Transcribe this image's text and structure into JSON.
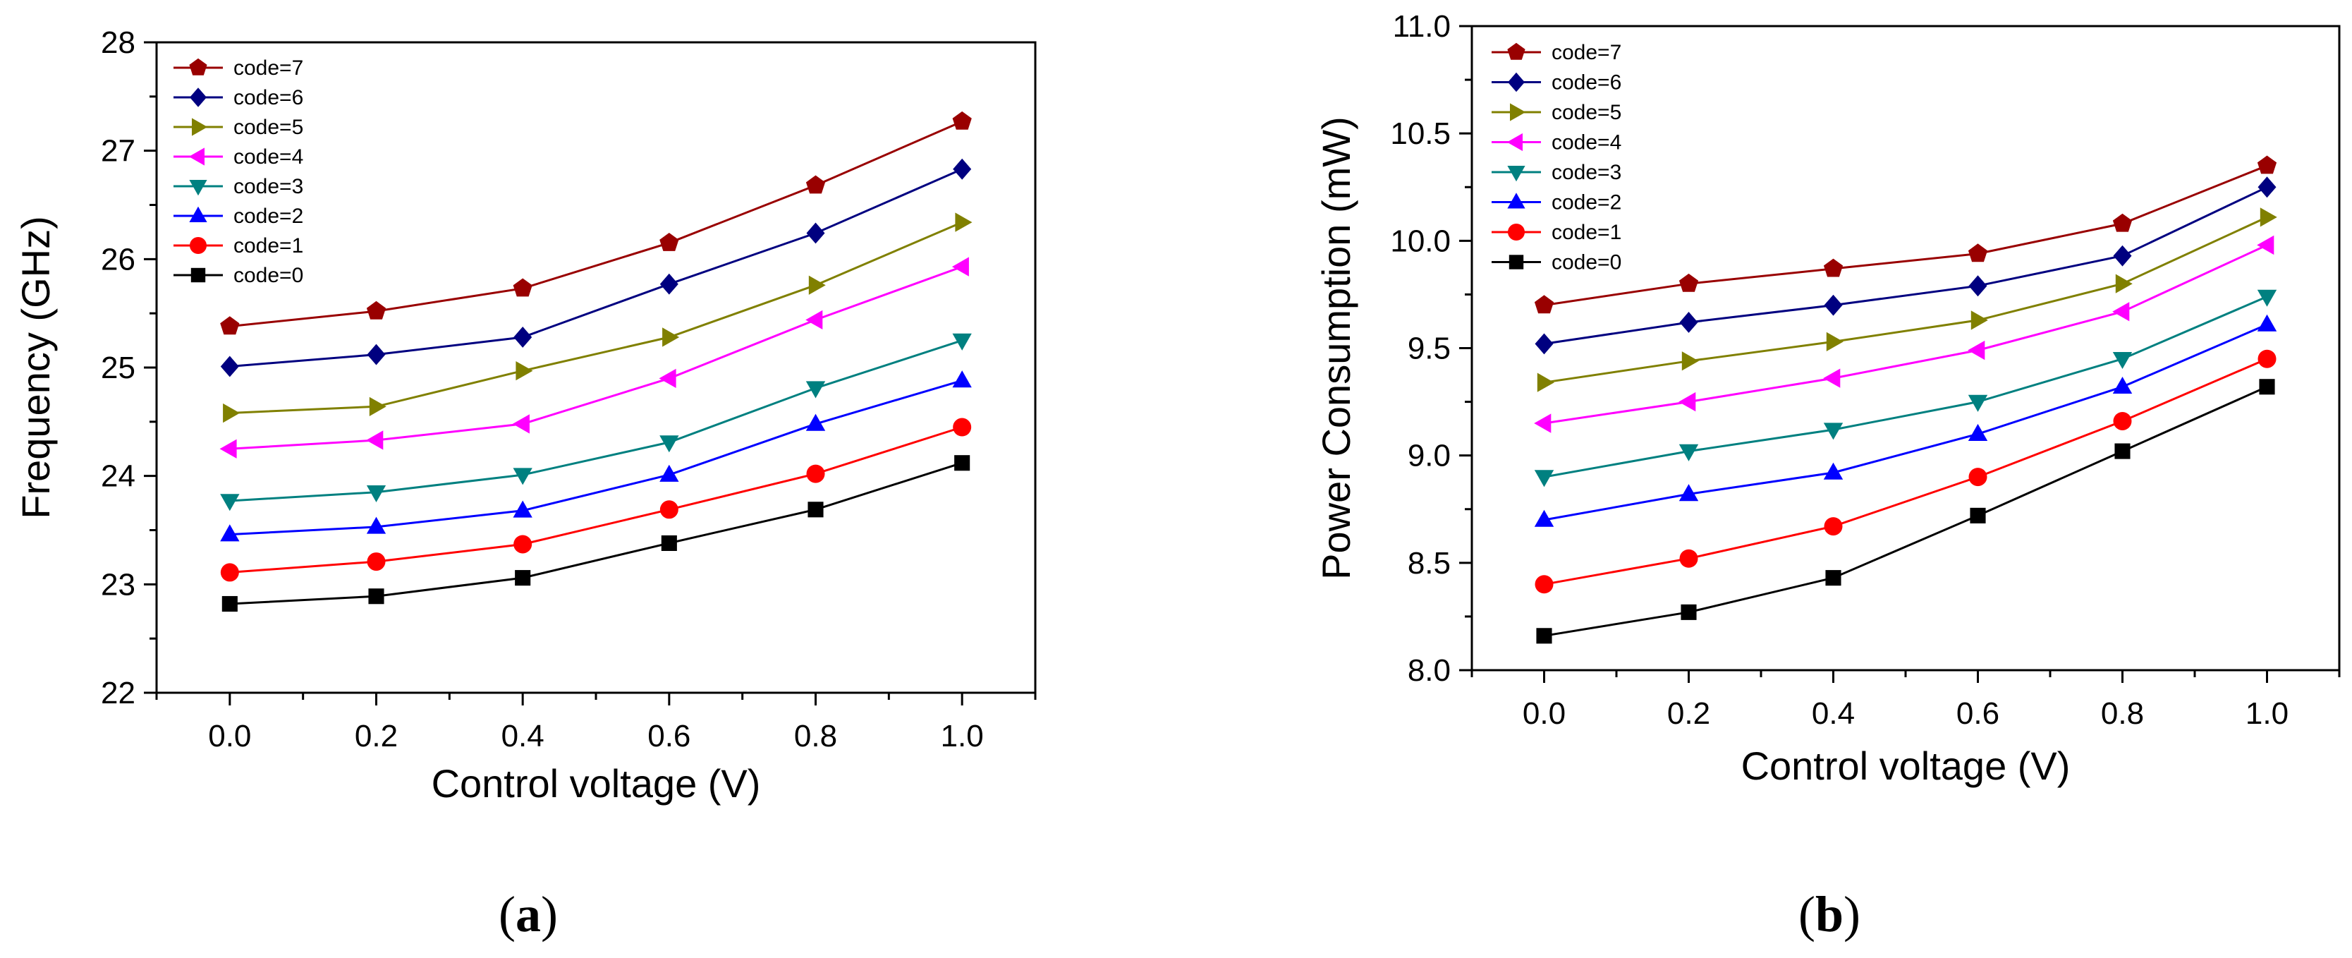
{
  "panel_labels": [
    {
      "open": "(",
      "letter": "a",
      "close": ")"
    },
    {
      "open": "(",
      "letter": "b",
      "close": ")"
    }
  ],
  "colors": {
    "code=7": "#990000",
    "code=6": "#000080",
    "code=5": "#808000",
    "code=4": "#ff00ff",
    "code=3": "#008080",
    "code=2": "#0000ff",
    "code=1": "#ff0000",
    "code=0": "#000000"
  },
  "markers": {
    "code=7": "pentagon",
    "code=6": "diamond",
    "code=5": "triangle-right",
    "code=4": "triangle-left",
    "code=3": "triangle-down",
    "code=2": "triangle-up",
    "code=1": "circle",
    "code=0": "square"
  },
  "chart_data": [
    {
      "type": "line",
      "xlabel": "Control voltage (V)",
      "ylabel": "Frequency (GHz)",
      "xlim": [
        -0.1,
        1.1
      ],
      "ylim": [
        22,
        28
      ],
      "xticks": [
        "0.0",
        "0.2",
        "0.4",
        "0.6",
        "0.8",
        "1.0"
      ],
      "yticks": [
        "22",
        "23",
        "24",
        "25",
        "26",
        "27",
        "28"
      ],
      "legend_position": "top-left",
      "grid": false,
      "x": [
        0.0,
        0.2,
        0.4,
        0.6,
        0.8,
        1.0
      ],
      "series": [
        {
          "name": "code=7",
          "values": [
            25.38,
            25.52,
            25.73,
            26.15,
            26.68,
            27.27
          ]
        },
        {
          "name": "code=6",
          "values": [
            25.01,
            25.12,
            25.28,
            25.77,
            26.24,
            26.83
          ]
        },
        {
          "name": "code=5",
          "values": [
            24.58,
            24.64,
            24.97,
            25.28,
            25.76,
            26.34
          ]
        },
        {
          "name": "code=4",
          "values": [
            24.25,
            24.33,
            24.48,
            24.9,
            25.44,
            25.93
          ]
        },
        {
          "name": "code=3",
          "values": [
            23.77,
            23.85,
            24.01,
            24.31,
            24.81,
            25.25
          ]
        },
        {
          "name": "code=2",
          "values": [
            23.46,
            23.53,
            23.68,
            24.01,
            24.48,
            24.88
          ]
        },
        {
          "name": "code=1",
          "values": [
            23.11,
            23.21,
            23.37,
            23.69,
            24.02,
            24.45
          ]
        },
        {
          "name": "code=0",
          "values": [
            22.82,
            22.89,
            23.06,
            23.38,
            23.69,
            24.12
          ]
        }
      ]
    },
    {
      "type": "line",
      "xlabel": "Control voltage (V)",
      "ylabel": "Power Consumption (mW)",
      "xlim": [
        -0.1,
        1.1
      ],
      "ylim": [
        8.0,
        11.0
      ],
      "xticks": [
        "0.0",
        "0.2",
        "0.4",
        "0.6",
        "0.8",
        "1.0"
      ],
      "yticks": [
        "8.0",
        "8.5",
        "9.0",
        "9.5",
        "10.0",
        "10.5",
        "11.0"
      ],
      "legend_position": "top-left",
      "grid": false,
      "x": [
        0.0,
        0.2,
        0.4,
        0.6,
        0.8,
        1.0
      ],
      "series": [
        {
          "name": "code=7",
          "values": [
            9.7,
            9.8,
            9.87,
            9.94,
            10.08,
            10.35
          ]
        },
        {
          "name": "code=6",
          "values": [
            9.52,
            9.62,
            9.7,
            9.79,
            9.93,
            10.25
          ]
        },
        {
          "name": "code=5",
          "values": [
            9.34,
            9.44,
            9.53,
            9.63,
            9.8,
            10.11
          ]
        },
        {
          "name": "code=4",
          "values": [
            9.15,
            9.25,
            9.36,
            9.49,
            9.67,
            9.98
          ]
        },
        {
          "name": "code=3",
          "values": [
            8.9,
            9.02,
            9.12,
            9.25,
            9.45,
            9.74
          ]
        },
        {
          "name": "code=2",
          "values": [
            8.7,
            8.82,
            8.92,
            9.1,
            9.32,
            9.61
          ]
        },
        {
          "name": "code=1",
          "values": [
            8.4,
            8.52,
            8.67,
            8.9,
            9.16,
            9.45
          ]
        },
        {
          "name": "code=0",
          "values": [
            8.16,
            8.27,
            8.43,
            8.72,
            9.02,
            9.32
          ]
        }
      ]
    }
  ]
}
